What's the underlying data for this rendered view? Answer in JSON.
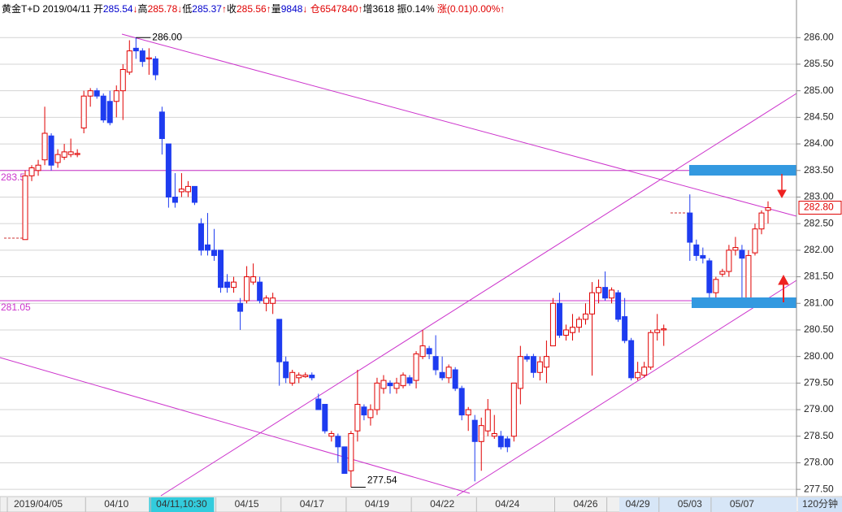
{
  "chart_data": {
    "type": "candlestick",
    "header": [
      {
        "text": "黄金T+D 2019/04/11 开",
        "color": "#000000"
      },
      {
        "text": "285.54",
        "color": "#0000cc"
      },
      {
        "text": "↓",
        "color": "#e00000"
      },
      {
        "text": "高",
        "color": "#000000"
      },
      {
        "text": "285.78",
        "color": "#e00000"
      },
      {
        "text": "↓",
        "color": "#e00000"
      },
      {
        "text": "低",
        "color": "#000000"
      },
      {
        "text": "285.37",
        "color": "#0000cc"
      },
      {
        "text": "↑",
        "color": "#e00000"
      },
      {
        "text": "收",
        "color": "#000000"
      },
      {
        "text": "285.56",
        "color": "#e00000"
      },
      {
        "text": "↑",
        "color": "#e00000"
      },
      {
        "text": "量",
        "color": "#000000"
      },
      {
        "text": "9848",
        "color": "#0000cc"
      },
      {
        "text": "↓ 仓6547840↑",
        "color": "#e00000"
      },
      {
        "text": "增3618 振0.14% ",
        "color": "#000000"
      },
      {
        "text": "涨(0.01)0.00%↑",
        "color": "#e00000"
      }
    ],
    "period": "120分钟",
    "categories": [
      null,
      null,
      "2019/04/05",
      null,
      null,
      null,
      null,
      null,
      null,
      null,
      null,
      null,
      null,
      null,
      "04/10",
      null,
      null,
      null,
      null,
      null,
      null,
      null,
      null,
      null,
      "04/11,10:30",
      null,
      null,
      null,
      null,
      null,
      null,
      null,
      null,
      null,
      "04/15",
      null,
      null,
      null,
      null,
      null,
      null,
      null,
      null,
      null,
      "04/17",
      null,
      null,
      null,
      null,
      null,
      null,
      null,
      null,
      null,
      "04/19",
      null,
      null,
      null,
      null,
      null,
      null,
      null,
      null,
      null,
      "04/22",
      null,
      null,
      null,
      null,
      null,
      null,
      null,
      null,
      null,
      "04/24",
      null,
      null,
      null,
      null,
      null,
      null,
      null,
      null,
      null,
      null,
      null,
      "04/26",
      null,
      null,
      null,
      null,
      null,
      null,
      null,
      "04/29",
      null,
      null,
      null,
      null,
      null,
      null,
      null,
      "05/03",
      null,
      null,
      null,
      null,
      null,
      null,
      null,
      "05/07",
      null,
      null,
      null,
      null
    ],
    "open": [
      282.2,
      283.4,
      283.5,
      283.7,
      284.15,
      283.65,
      283.75,
      283.8,
      283.8,
      284.3,
      284.9,
      285.0,
      284.9,
      284.8,
      284.8,
      285.0,
      285.35,
      285.8,
      285.75,
      285.6,
      285.6,
      284.6,
      284.0,
      283.0,
      283.1,
      283.1,
      283.2,
      282.5,
      282.1,
      282.0,
      282.0,
      281.4,
      281.3,
      281.0,
      281.05,
      281.4,
      281.4,
      281.0,
      281.0,
      280.7,
      279.9,
      279.5,
      279.6,
      279.62,
      279.65,
      279.2,
      279.1,
      278.5,
      278.5,
      278.3,
      277.85,
      278.6,
      279.05,
      278.85,
      279.0,
      279.4,
      279.5,
      279.4,
      279.45,
      279.6,
      279.55,
      280.0,
      280.15,
      280.0,
      279.7,
      279.6,
      279.75,
      279.4,
      278.9,
      278.8,
      278.4,
      278.6,
      278.5,
      278.5,
      278.45,
      278.5,
      279.4,
      280.0,
      280.0,
      279.7,
      279.8,
      280.2,
      281.0,
      280.4,
      280.45,
      280.55,
      280.7,
      280.8,
      281.2,
      281.3,
      281.1,
      281.2,
      280.75,
      280.3,
      279.6,
      279.65,
      279.8,
      280.45,
      280.5,
      null,
      null,
      null,
      282.7,
      282.1,
      281.9,
      281.8,
      281.2,
      281.55,
      281.6,
      282.0,
      282.0,
      281.05,
      281.95,
      282.4,
      282.75
    ],
    "high": [
      283.5,
      283.6,
      283.7,
      284.7,
      284.2,
      283.9,
      284.0,
      284.1,
      283.9,
      285.0,
      285.05,
      285.05,
      284.95,
      285.0,
      285.1,
      285.5,
      285.95,
      286.0,
      285.8,
      285.8,
      285.65,
      284.7,
      284.0,
      283.45,
      283.45,
      283.3,
      283.2,
      282.6,
      282.7,
      282.4,
      282.0,
      281.55,
      281.5,
      281.1,
      281.7,
      281.75,
      281.5,
      281.15,
      281.2,
      280.7,
      280.0,
      279.75,
      279.7,
      279.7,
      279.7,
      279.3,
      279.1,
      278.6,
      278.55,
      278.3,
      278.6,
      279.75,
      279.1,
      279.1,
      279.6,
      279.65,
      279.55,
      279.6,
      279.7,
      279.65,
      280.1,
      280.5,
      280.2,
      280.4,
      280.0,
      279.85,
      279.8,
      279.45,
      279.05,
      278.9,
      278.85,
      279.2,
      278.9,
      278.6,
      278.5,
      279.5,
      280.2,
      280.05,
      280.05,
      280.0,
      280.3,
      281.1,
      281.2,
      280.6,
      280.8,
      280.75,
      281.0,
      281.4,
      281.45,
      281.6,
      281.3,
      281.25,
      281.1,
      280.35,
      279.9,
      279.9,
      280.5,
      280.8,
      280.6,
      null,
      null,
      null,
      283.05,
      282.2,
      282.05,
      281.85,
      281.5,
      281.65,
      282.1,
      282.25,
      282.1,
      282.0,
      282.5,
      282.75,
      282.92
    ],
    "low": [
      282.2,
      283.3,
      283.4,
      283.6,
      283.5,
      283.55,
      283.7,
      283.75,
      283.75,
      284.2,
      284.7,
      284.85,
      284.4,
      284.35,
      284.5,
      284.45,
      285.3,
      285.6,
      285.45,
      285.3,
      285.2,
      283.8,
      282.8,
      282.8,
      283.0,
      283.0,
      282.85,
      281.9,
      281.9,
      281.8,
      281.2,
      281.2,
      281.2,
      280.5,
      281.0,
      281.35,
      281.0,
      280.85,
      280.8,
      279.45,
      279.5,
      279.45,
      279.5,
      279.6,
      279.55,
      279.0,
      278.55,
      278.4,
      278.0,
      277.8,
      277.54,
      278.4,
      278.8,
      278.7,
      278.9,
      279.3,
      279.3,
      279.3,
      279.4,
      279.45,
      279.4,
      279.95,
      279.95,
      279.65,
      279.55,
      279.5,
      279.35,
      278.8,
      278.6,
      277.65,
      277.85,
      278.5,
      278.45,
      278.25,
      278.2,
      278.4,
      279.1,
      279.9,
      279.6,
      279.55,
      279.5,
      280.2,
      280.35,
      280.3,
      280.3,
      280.45,
      280.6,
      279.64,
      281.0,
      281.05,
      281.0,
      280.65,
      280.25,
      279.55,
      279.55,
      279.6,
      279.75,
      280.3,
      280.2,
      null,
      null,
      null,
      281.8,
      281.8,
      281.75,
      281.1,
      281.05,
      281.5,
      281.5,
      281.9,
      281.1,
      281.0,
      281.9,
      282.3,
      282.5
    ],
    "close": [
      283.4,
      283.55,
      283.6,
      284.2,
      283.6,
      283.8,
      283.85,
      283.85,
      283.82,
      284.9,
      285.0,
      284.9,
      284.45,
      284.4,
      285.0,
      285.4,
      285.75,
      285.75,
      285.55,
      285.62,
      285.3,
      284.1,
      283.0,
      282.9,
      283.15,
      283.2,
      282.9,
      282.0,
      282.0,
      281.9,
      281.3,
      281.3,
      281.4,
      280.85,
      281.5,
      281.5,
      281.05,
      281.1,
      281.1,
      279.9,
      279.6,
      279.7,
      279.65,
      279.65,
      279.6,
      279.0,
      278.6,
      278.55,
      278.3,
      277.8,
      278.55,
      279.1,
      278.9,
      279.0,
      279.5,
      279.55,
      279.45,
      279.5,
      279.65,
      279.5,
      280.05,
      280.2,
      280.05,
      279.75,
      279.6,
      279.8,
      279.4,
      278.9,
      279.0,
      278.4,
      278.7,
      279.0,
      278.55,
      278.3,
      278.3,
      279.5,
      280.0,
      279.95,
      279.7,
      279.9,
      280.0,
      281.0,
      280.4,
      280.5,
      280.55,
      280.7,
      280.8,
      281.2,
      281.3,
      281.1,
      281.25,
      280.7,
      280.3,
      279.6,
      279.7,
      279.8,
      280.45,
      280.5,
      280.52,
      null,
      null,
      null,
      282.15,
      281.9,
      281.85,
      281.2,
      281.45,
      281.6,
      282.0,
      282.05,
      281.85,
      281.9,
      282.4,
      282.7,
      282.8
    ],
    "up_color": "#e00000",
    "down_color": "#1e3cf0",
    "ylim": [
      277.38,
      286.31
    ],
    "yticks": [
      {
        "value": 277.5,
        "label": "277.50"
      },
      {
        "value": 278.0,
        "label": "278.00"
      },
      {
        "value": 278.5,
        "label": "278.50"
      },
      {
        "value": 279.0,
        "label": "279.00"
      },
      {
        "value": 279.5,
        "label": "279.50"
      },
      {
        "value": 280.0,
        "label": "280.00"
      },
      {
        "value": 280.5,
        "label": "280.50"
      },
      {
        "value": 281.0,
        "label": "281.00"
      },
      {
        "value": 281.5,
        "label": "281.50"
      },
      {
        "value": 282.0,
        "label": "282.00"
      },
      {
        "value": 282.5,
        "label": "282.50"
      },
      {
        "value": 283.0,
        "label": "283.00"
      },
      {
        "value": 283.5,
        "label": "283.50"
      },
      {
        "value": 284.0,
        "label": "284.00"
      },
      {
        "value": 284.5,
        "label": "284.50"
      },
      {
        "value": 285.0,
        "label": "285.00"
      },
      {
        "value": 285.5,
        "label": "285.50"
      },
      {
        "value": 286.0,
        "label": "286.00"
      }
    ],
    "grid": true,
    "hlines": [
      {
        "value": 283.5,
        "label": "283.5"
      },
      {
        "value": 281.05,
        "label": "281.05"
      }
    ],
    "hline_color": "#cc33cc",
    "high_label": {
      "value": 286.0,
      "label": "286.00"
    },
    "low_label": {
      "value": 277.54,
      "label": "277.54"
    },
    "last_label": {
      "value": 282.8,
      "label": "282.80"
    }
  }
}
